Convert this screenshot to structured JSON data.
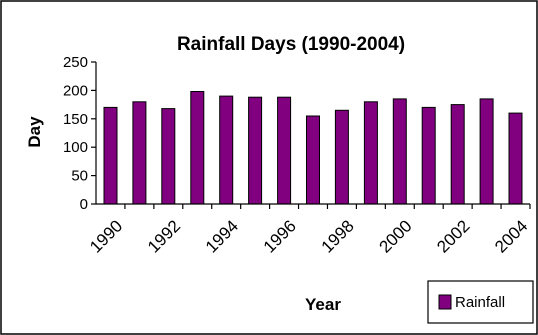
{
  "chart_data": {
    "type": "bar",
    "title": "Rainfall Days (1990-2004)",
    "xlabel": "Year",
    "ylabel": "Day",
    "categories": [
      "1990",
      "1991",
      "1992",
      "1993",
      "1994",
      "1995",
      "1996",
      "1997",
      "1998",
      "1999",
      "2000",
      "2001",
      "2002",
      "2003",
      "2004"
    ],
    "series": [
      {
        "name": "Rainfall",
        "color": "#800080",
        "values": [
          170,
          180,
          168,
          198,
          190,
          188,
          188,
          155,
          165,
          180,
          185,
          170,
          175,
          185,
          160
        ]
      }
    ],
    "x_tick_labels": [
      "1990",
      "1992",
      "1994",
      "1996",
      "1998",
      "2000",
      "2002",
      "2004"
    ],
    "y_ticks": [
      "0",
      "50",
      "100",
      "150",
      "200",
      "250"
    ],
    "ylim": [
      0,
      250
    ],
    "grid": false,
    "legend_position": "bottom-right"
  }
}
